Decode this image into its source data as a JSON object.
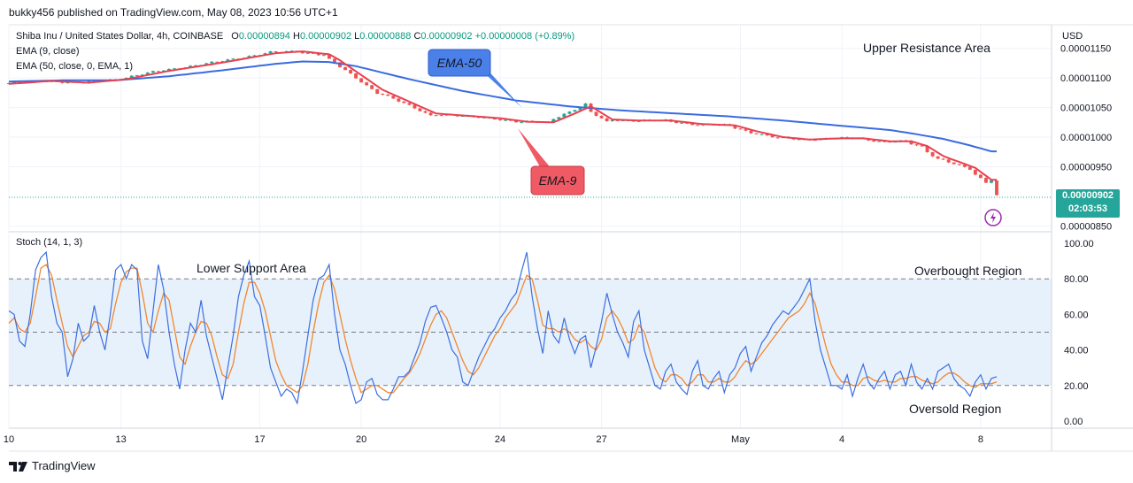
{
  "header": {
    "published_text": "bukky456 published on TradingView.com, May 08, 2023 10:56 UTC+1"
  },
  "legend": {
    "symbol_text": "Shiba Inu / United States Dollar, 4h, COINBASE",
    "ohlc": {
      "open_label": "O",
      "open": "0.00000894",
      "high_label": "H",
      "high": "0.00000902",
      "low_label": "L",
      "low": "0.00000888",
      "close_label": "C",
      "close": "0.00000902",
      "change": "+0.00000008 (+0.89%)"
    },
    "ema9": "EMA (9, close)",
    "ema50": "EMA (50, close, 0, EMA, 1)",
    "stoch": "Stoch (14, 1, 3)"
  },
  "price_box": {
    "price": "0.00000902",
    "countdown": "02:03:53"
  },
  "brand": "TradingView",
  "colors": {
    "up": "#26a69a",
    "down": "#ef5350",
    "ema9": "#e84050",
    "ema50": "#3a6be0",
    "stoch_k": "#3d6fe0",
    "stoch_d": "#f2872f",
    "band": "#e7f1fb",
    "ema50_callout": "#4a80e8",
    "ema9_callout": "#ef5a64"
  },
  "chart_data": [
    {
      "type": "candlestick",
      "title": "Shiba Inu / United States Dollar, 4h, COINBASE",
      "currency": "USD",
      "ylim": [
        8.4e-06,
        1.19e-05
      ],
      "yticks": [
        "0.00001150",
        "0.00001100",
        "0.00001050",
        "0.00001000",
        "0.00000950",
        "0.00000850"
      ],
      "ytick_values": [
        1.15e-05,
        1.1e-05,
        1.05e-05,
        1e-05,
        9.5e-06,
        8.5e-06
      ],
      "xticks": [
        "10",
        "13",
        "17",
        "20",
        "24",
        "27",
        "May",
        "4",
        "8"
      ],
      "xtick_index": [
        0,
        21,
        47,
        66,
        92,
        111,
        137,
        156,
        182
      ],
      "last_price": 9.02e-06,
      "series": [
        {
          "name": "EMA-9",
          "anchors_index": [
            0,
            8,
            15,
            22,
            30,
            40,
            50,
            55,
            60,
            62,
            66,
            70,
            75,
            80,
            86,
            92,
            97,
            102,
            106,
            109,
            113,
            118,
            124,
            130,
            136,
            140,
            145,
            150,
            156,
            160,
            165,
            169,
            172,
            175,
            178,
            181,
            184
          ],
          "values": [
            1.09e-05,
            1.095e-05,
            1.092e-05,
            1.098e-05,
            1.112e-05,
            1.126e-05,
            1.142e-05,
            1.145e-05,
            1.14e-05,
            1.13e-05,
            1.105e-05,
            1.08e-05,
            1.06e-05,
            1.04e-05,
            1.036e-05,
            1.032e-05,
            1.026e-05,
            1.025e-05,
            1.04e-05,
            1.052e-05,
            1.03e-05,
            1.028e-05,
            1.028e-05,
            1.022e-05,
            1.02e-05,
            1.01e-05,
            1e-05,
            9.96e-06,
            9.98e-06,
            9.98e-06,
            9.93e-06,
            9.93e-06,
            9.85e-06,
            9.68e-06,
            9.58e-06,
            9.48e-06,
            9.28e-06
          ]
        },
        {
          "name": "EMA-50",
          "anchors_index": [
            0,
            10,
            20,
            30,
            40,
            50,
            55,
            60,
            65,
            75,
            85,
            95,
            105,
            115,
            125,
            135,
            145,
            155,
            165,
            170,
            175,
            180,
            184
          ],
          "values": [
            1.094e-05,
            1.096e-05,
            1.096e-05,
            1.103e-05,
            1.113e-05,
            1.124e-05,
            1.128e-05,
            1.127e-05,
            1.12e-05,
            1.098e-05,
            1.078e-05,
            1.062e-05,
            1.052e-05,
            1.045e-05,
            1.04e-05,
            1.035e-05,
            1.028e-05,
            1.02e-05,
            1.012e-05,
            1.005e-05,
            9.97e-06,
            9.86e-06,
            9.76e-06
          ]
        }
      ],
      "candle_count": 186,
      "annotations": [
        {
          "text": "Upper Resistance Area"
        },
        {
          "text": "EMA-50"
        },
        {
          "text": "EMA-9"
        }
      ]
    },
    {
      "type": "line",
      "title": "Stoch (14, 1, 3)",
      "ylim": [
        0,
        100
      ],
      "yticks": [
        "100.00",
        "80.00",
        "60.00",
        "40.00",
        "20.00",
        "0.00"
      ],
      "ytick_values": [
        100,
        80,
        60,
        40,
        20,
        0
      ],
      "bands": {
        "upper": 80,
        "middle": 50,
        "lower": 20
      },
      "series": [
        {
          "name": "%K",
          "values": [
            62,
            58,
            50,
            42,
            55,
            80,
            92,
            90,
            75,
            60,
            52,
            35,
            26,
            45,
            53,
            50,
            60,
            56,
            48,
            55,
            70,
            82,
            88,
            92,
            85,
            60,
            45,
            55,
            73,
            78,
            62,
            40,
            28,
            35,
            48,
            52,
            60,
            54,
            42,
            30,
            18,
            25,
            40,
            60,
            72,
            80,
            76,
            70,
            60,
            42,
            30,
            22,
            20,
            18,
            15,
            25,
            40,
            58,
            72,
            80,
            85,
            70,
            55,
            42,
            30,
            18,
            15,
            20,
            22,
            18,
            16,
            14,
            18,
            22,
            25,
            28,
            34,
            40,
            50,
            58,
            63,
            60,
            55,
            45,
            40,
            30,
            25,
            26,
            34,
            38,
            44,
            50,
            55,
            60,
            65,
            70,
            80,
            90,
            75,
            60,
            45,
            60,
            52,
            48,
            55,
            50,
            42,
            45,
            48,
            35,
            40,
            50,
            66,
            62,
            55,
            48,
            40,
            52,
            60,
            45,
            35,
            24,
            20,
            25,
            30,
            26,
            22,
            18,
            25,
            30,
            24,
            20,
            22,
            25,
            20,
            24,
            28,
            34,
            38,
            30,
            35,
            40,
            45,
            50,
            55,
            58,
            60,
            62,
            65,
            70,
            80,
            60,
            45,
            35,
            25,
            22,
            20,
            24,
            18,
            22,
            28,
            24,
            20,
            22,
            25,
            20,
            24,
            26,
            22,
            28,
            24,
            20,
            22,
            20,
            25,
            28,
            30,
            26,
            22,
            20,
            18,
            20,
            24,
            20,
            22,
            24
          ],
          "raw_values": [
            62,
            60,
            45,
            42,
            60,
            85,
            92,
            95,
            70,
            55,
            50,
            25,
            35,
            55,
            45,
            48,
            65,
            50,
            40,
            60,
            85,
            88,
            80,
            88,
            85,
            45,
            35,
            62,
            88,
            74,
            50,
            32,
            18,
            40,
            55,
            50,
            68,
            48,
            36,
            24,
            12,
            30,
            48,
            70,
            82,
            90,
            70,
            65,
            48,
            30,
            22,
            14,
            18,
            16,
            10,
            28,
            48,
            68,
            80,
            82,
            88,
            60,
            40,
            32,
            20,
            10,
            12,
            22,
            24,
            15,
            12,
            12,
            18,
            25,
            25,
            28,
            36,
            44,
            56,
            64,
            65,
            58,
            50,
            40,
            36,
            22,
            20,
            28,
            36,
            42,
            48,
            52,
            58,
            62,
            68,
            72,
            84,
            95,
            70,
            52,
            38,
            62,
            48,
            44,
            58,
            46,
            38,
            46,
            48,
            30,
            42,
            56,
            72,
            60,
            50,
            44,
            36,
            56,
            62,
            40,
            30,
            20,
            18,
            28,
            32,
            22,
            18,
            15,
            28,
            34,
            20,
            18,
            24,
            28,
            16,
            26,
            30,
            38,
            42,
            28,
            36,
            44,
            48,
            54,
            58,
            62,
            60,
            64,
            68,
            74,
            80,
            56,
            40,
            30,
            20,
            20,
            18,
            26,
            14,
            24,
            32,
            22,
            18,
            24,
            28,
            18,
            26,
            28,
            20,
            32,
            22,
            18,
            24,
            18,
            28,
            30,
            32,
            24,
            20,
            18,
            14,
            22,
            26,
            18,
            24,
            25
          ]
        },
        {
          "name": "%D",
          "values": [
            55,
            58,
            52,
            50,
            55,
            70,
            86,
            88,
            82,
            68,
            55,
            42,
            36,
            42,
            48,
            50,
            56,
            55,
            50,
            52,
            66,
            78,
            84,
            86,
            86,
            72,
            55,
            50,
            62,
            72,
            68,
            52,
            36,
            32,
            42,
            50,
            56,
            55,
            48,
            36,
            26,
            24,
            32,
            50,
            66,
            78,
            78,
            72,
            62,
            48,
            34,
            26,
            20,
            18,
            16,
            20,
            32,
            50,
            66,
            78,
            82,
            74,
            60,
            46,
            34,
            24,
            16,
            18,
            20,
            20,
            18,
            16,
            16,
            20,
            24,
            27,
            32,
            38,
            46,
            54,
            60,
            62,
            58,
            50,
            42,
            34,
            28,
            26,
            30,
            36,
            42,
            48,
            52,
            58,
            62,
            66,
            74,
            82,
            80,
            68,
            54,
            52,
            52,
            50,
            52,
            50,
            46,
            44,
            46,
            42,
            40,
            46,
            58,
            62,
            58,
            52,
            44,
            46,
            54,
            50,
            40,
            30,
            24,
            22,
            26,
            26,
            24,
            20,
            22,
            26,
            26,
            22,
            22,
            24,
            22,
            22,
            25,
            30,
            34,
            32,
            34,
            38,
            42,
            46,
            50,
            54,
            58,
            60,
            62,
            66,
            72,
            66,
            54,
            42,
            32,
            26,
            22,
            22,
            20,
            20,
            24,
            25,
            23,
            22,
            23,
            22,
            22,
            24,
            24,
            25,
            25,
            23,
            22,
            21,
            22,
            25,
            27,
            27,
            25,
            22,
            20,
            19,
            21,
            21,
            21,
            22
          ]
        }
      ],
      "annotations": [
        {
          "text": "Lower Support Area"
        },
        {
          "text": "Overbought Region"
        },
        {
          "text": "Oversold Region"
        }
      ]
    }
  ]
}
